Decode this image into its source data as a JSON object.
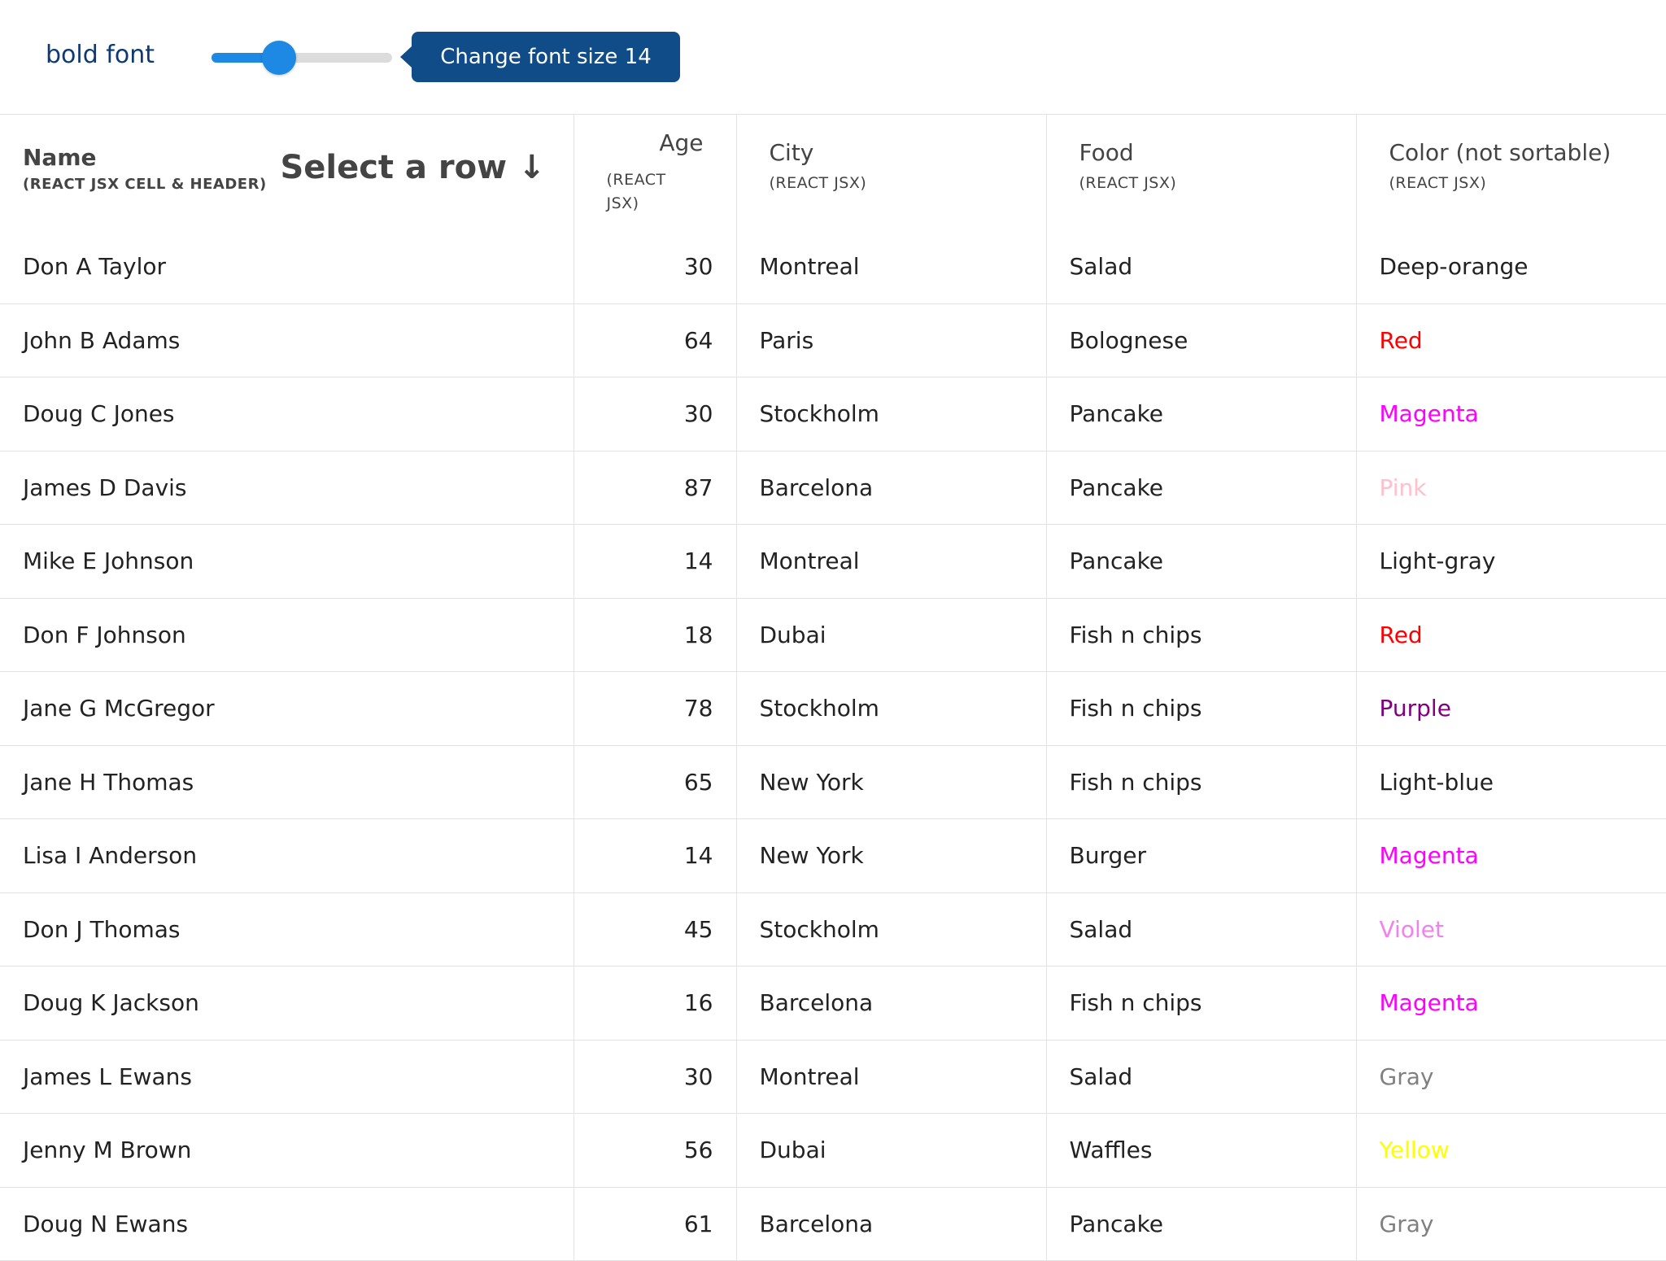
{
  "toolbar": {
    "bold_label": "bold font",
    "font_size": 14,
    "font_size_min": 8,
    "font_size_max": 24,
    "tooltip": "Change font size 14"
  },
  "table": {
    "headers": {
      "name": "Name",
      "name_sub": "(REACT JSX CELL & HEADER)",
      "select_row": "Select a row ↓",
      "age": "Age",
      "age_sub": "(REACT JSX)",
      "city": "City",
      "city_sub": "(REACT JSX)",
      "food": "Food",
      "food_sub": "(REACT JSX)",
      "color": "Color (not sortable)",
      "color_sub": "(REACT JSX)"
    },
    "rows": [
      {
        "name": "Don A Taylor",
        "age": "30",
        "city": "Montreal",
        "food": "Salad",
        "color": "Deep-orange",
        "color_hex": "#222222"
      },
      {
        "name": "John B Adams",
        "age": "64",
        "city": "Paris",
        "food": "Bolognese",
        "color": "Red",
        "color_hex": "#ff0000"
      },
      {
        "name": "Doug C Jones",
        "age": "30",
        "city": "Stockholm",
        "food": "Pancake",
        "color": "Magenta",
        "color_hex": "#ff00ff"
      },
      {
        "name": "James D Davis",
        "age": "87",
        "city": "Barcelona",
        "food": "Pancake",
        "color": "Pink",
        "color_hex": "#ffc0cb"
      },
      {
        "name": "Mike E Johnson",
        "age": "14",
        "city": "Montreal",
        "food": "Pancake",
        "color": "Light-gray",
        "color_hex": "#222222"
      },
      {
        "name": "Don F Johnson",
        "age": "18",
        "city": "Dubai",
        "food": "Fish n chips",
        "color": "Red",
        "color_hex": "#ff0000"
      },
      {
        "name": "Jane G McGregor",
        "age": "78",
        "city": "Stockholm",
        "food": "Fish n chips",
        "color": "Purple",
        "color_hex": "#800080"
      },
      {
        "name": "Jane H Thomas",
        "age": "65",
        "city": "New York",
        "food": "Fish n chips",
        "color": "Light-blue",
        "color_hex": "#222222"
      },
      {
        "name": "Lisa I Anderson",
        "age": "14",
        "city": "New York",
        "food": "Burger",
        "color": "Magenta",
        "color_hex": "#ff00ff"
      },
      {
        "name": "Don J Thomas",
        "age": "45",
        "city": "Stockholm",
        "food": "Salad",
        "color": "Violet",
        "color_hex": "#ee82ee"
      },
      {
        "name": "Doug K Jackson",
        "age": "16",
        "city": "Barcelona",
        "food": "Fish n chips",
        "color": "Magenta",
        "color_hex": "#ff00ff"
      },
      {
        "name": "James L Ewans",
        "age": "30",
        "city": "Montreal",
        "food": "Salad",
        "color": "Gray",
        "color_hex": "#808080"
      },
      {
        "name": "Jenny M Brown",
        "age": "56",
        "city": "Dubai",
        "food": "Waffles",
        "color": "Yellow",
        "color_hex": "#ffff00"
      },
      {
        "name": "Doug N Ewans",
        "age": "61",
        "city": "Barcelona",
        "food": "Pancake",
        "color": "Gray",
        "color_hex": "#808080"
      }
    ]
  }
}
